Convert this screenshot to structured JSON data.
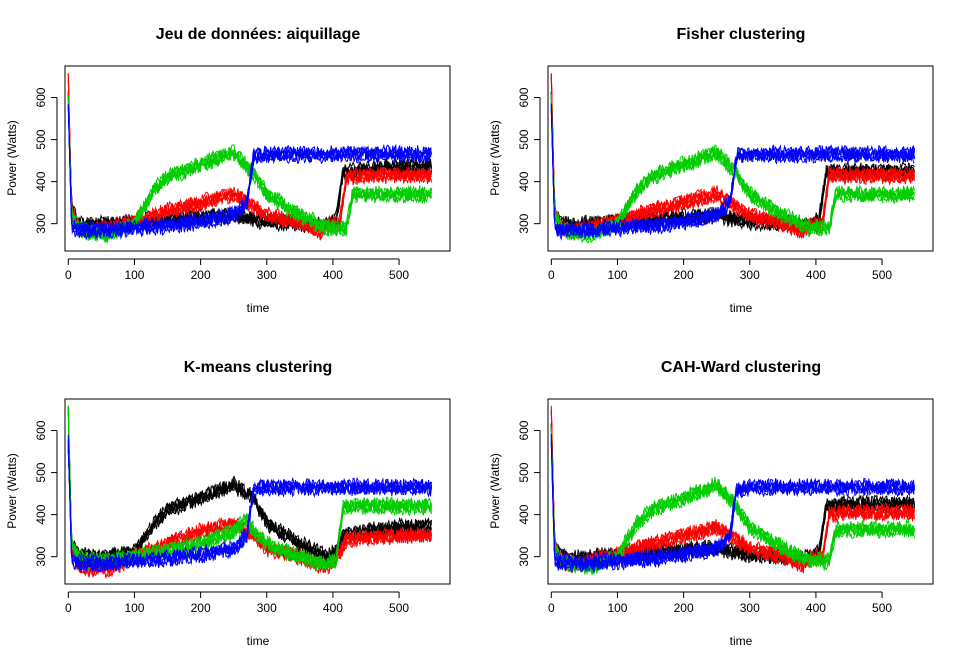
{
  "figure": {
    "colors": {
      "black": "#000000",
      "red": "#ff0000",
      "green": "#00cd00",
      "blue": "#0000ff"
    }
  },
  "chart_data": [
    {
      "type": "line",
      "title": "Jeu de données: aiquillage",
      "xlabel": "time",
      "ylabel": "Power (Watts)",
      "xlim": [
        0,
        550
      ],
      "ylim": [
        250,
        650
      ],
      "xticks": [
        0,
        100,
        200,
        300,
        400,
        500
      ],
      "yticks": [
        300,
        400,
        500,
        600
      ],
      "grid": false,
      "legend": "none",
      "series": [
        {
          "color": "#000000",
          "x": [
            0,
            5,
            15,
            30,
            60,
            100,
            150,
            200,
            250,
            280,
            300,
            350,
            390,
            405,
            415,
            450,
            500,
            550
          ],
          "y": [
            610,
            340,
            300,
            295,
            300,
            305,
            310,
            315,
            320,
            310,
            305,
            300,
            295,
            310,
            420,
            430,
            435,
            435
          ]
        },
        {
          "color": "#ff0000",
          "x": [
            0,
            5,
            15,
            30,
            60,
            100,
            150,
            200,
            250,
            280,
            300,
            350,
            380,
            395,
            410,
            420,
            450,
            500,
            550
          ],
          "y": [
            650,
            330,
            290,
            280,
            290,
            305,
            330,
            350,
            370,
            340,
            320,
            300,
            280,
            300,
            300,
            410,
            415,
            415,
            415
          ]
        },
        {
          "color": "#00cd00",
          "x": [
            0,
            5,
            15,
            30,
            60,
            100,
            130,
            150,
            200,
            250,
            280,
            300,
            350,
            390,
            420,
            430,
            450,
            500,
            550
          ],
          "y": [
            600,
            320,
            290,
            280,
            275,
            300,
            380,
            410,
            440,
            470,
            420,
            370,
            320,
            290,
            290,
            370,
            370,
            370,
            370
          ]
        },
        {
          "color": "#0000ff",
          "x": [
            0,
            5,
            15,
            30,
            60,
            100,
            150,
            200,
            250,
            270,
            280,
            300,
            350,
            400,
            450,
            500,
            550
          ],
          "y": [
            580,
            290,
            285,
            285,
            285,
            290,
            295,
            305,
            320,
            350,
            460,
            465,
            465,
            465,
            465,
            465,
            465
          ]
        }
      ]
    },
    {
      "type": "line",
      "title": "Fisher clustering",
      "xlabel": "time",
      "ylabel": "Power (Watts)",
      "xlim": [
        0,
        550
      ],
      "ylim": [
        250,
        650
      ],
      "xticks": [
        0,
        100,
        200,
        300,
        400,
        500
      ],
      "yticks": [
        300,
        400,
        500,
        600
      ],
      "grid": false,
      "legend": "none",
      "series": [
        {
          "color": "#000000",
          "x": [
            0,
            5,
            15,
            30,
            60,
            100,
            150,
            200,
            250,
            280,
            300,
            350,
            390,
            405,
            415,
            450,
            500,
            550
          ],
          "y": [
            610,
            330,
            300,
            295,
            300,
            305,
            310,
            315,
            320,
            310,
            305,
            300,
            295,
            310,
            420,
            425,
            425,
            425
          ]
        },
        {
          "color": "#ff0000",
          "x": [
            0,
            5,
            15,
            30,
            60,
            100,
            150,
            200,
            250,
            280,
            300,
            350,
            380,
            395,
            410,
            420,
            450,
            500,
            550
          ],
          "y": [
            650,
            330,
            290,
            280,
            290,
            305,
            330,
            350,
            370,
            340,
            320,
            300,
            280,
            300,
            300,
            415,
            415,
            415,
            415
          ]
        },
        {
          "color": "#00cd00",
          "x": [
            0,
            5,
            15,
            30,
            60,
            100,
            130,
            150,
            200,
            250,
            280,
            300,
            350,
            390,
            420,
            430,
            450,
            500,
            550
          ],
          "y": [
            600,
            320,
            290,
            280,
            275,
            300,
            380,
            410,
            440,
            470,
            420,
            370,
            320,
            290,
            290,
            370,
            370,
            370,
            370
          ]
        },
        {
          "color": "#0000ff",
          "x": [
            0,
            5,
            15,
            30,
            60,
            100,
            150,
            200,
            250,
            270,
            280,
            300,
            350,
            400,
            450,
            500,
            550
          ],
          "y": [
            580,
            290,
            285,
            285,
            285,
            290,
            295,
            305,
            320,
            350,
            460,
            465,
            465,
            465,
            465,
            465,
            465
          ]
        }
      ]
    },
    {
      "type": "line",
      "title": "K-means clustering",
      "xlabel": "time",
      "ylabel": "Power (Watts)",
      "xlim": [
        0,
        550
      ],
      "ylim": [
        250,
        650
      ],
      "xticks": [
        0,
        100,
        200,
        300,
        400,
        500
      ],
      "yticks": [
        300,
        400,
        500,
        600
      ],
      "grid": false,
      "legend": "none",
      "series": [
        {
          "color": "#000000",
          "x": [
            0,
            5,
            15,
            30,
            60,
            100,
            130,
            150,
            200,
            250,
            280,
            300,
            350,
            390,
            405,
            415,
            450,
            500,
            550
          ],
          "y": [
            560,
            330,
            305,
            300,
            300,
            310,
            380,
            410,
            440,
            470,
            440,
            380,
            330,
            300,
            310,
            350,
            360,
            370,
            370
          ]
        },
        {
          "color": "#ff0000",
          "x": [
            0,
            5,
            15,
            30,
            60,
            100,
            150,
            200,
            250,
            280,
            300,
            350,
            380,
            395,
            410,
            420,
            450,
            500,
            550
          ],
          "y": [
            650,
            320,
            280,
            270,
            270,
            300,
            330,
            360,
            380,
            350,
            320,
            300,
            280,
            280,
            310,
            340,
            345,
            350,
            350
          ]
        },
        {
          "color": "#00cd00",
          "x": [
            0,
            5,
            15,
            30,
            60,
            100,
            150,
            200,
            250,
            270,
            280,
            300,
            350,
            390,
            405,
            415,
            450,
            500,
            550
          ],
          "y": [
            650,
            330,
            300,
            290,
            290,
            300,
            315,
            330,
            360,
            390,
            360,
            330,
            300,
            280,
            290,
            420,
            420,
            420,
            420
          ]
        },
        {
          "color": "#0000ff",
          "x": [
            0,
            5,
            15,
            30,
            60,
            100,
            150,
            200,
            250,
            270,
            280,
            300,
            350,
            400,
            450,
            500,
            550
          ],
          "y": [
            580,
            290,
            285,
            285,
            285,
            290,
            295,
            305,
            320,
            350,
            460,
            465,
            465,
            465,
            465,
            465,
            465
          ]
        }
      ]
    },
    {
      "type": "line",
      "title": "CAH-Ward clustering",
      "xlabel": "time",
      "ylabel": "Power (Watts)",
      "xlim": [
        0,
        550
      ],
      "ylim": [
        250,
        650
      ],
      "xticks": [
        0,
        100,
        200,
        300,
        400,
        500
      ],
      "yticks": [
        300,
        400,
        500,
        600
      ],
      "grid": false,
      "legend": "none",
      "series": [
        {
          "color": "#000000",
          "x": [
            0,
            5,
            15,
            30,
            60,
            100,
            150,
            200,
            250,
            280,
            300,
            350,
            390,
            405,
            415,
            450,
            500,
            550
          ],
          "y": [
            610,
            330,
            300,
            295,
            300,
            305,
            310,
            315,
            320,
            310,
            305,
            300,
            295,
            310,
            420,
            425,
            425,
            425
          ]
        },
        {
          "color": "#ff0000",
          "x": [
            0,
            5,
            15,
            30,
            60,
            100,
            150,
            200,
            250,
            280,
            300,
            350,
            380,
            395,
            410,
            420,
            450,
            500,
            550
          ],
          "y": [
            650,
            330,
            290,
            280,
            290,
            305,
            330,
            350,
            370,
            340,
            320,
            300,
            280,
            300,
            300,
            400,
            405,
            405,
            405
          ]
        },
        {
          "color": "#00cd00",
          "x": [
            0,
            5,
            15,
            30,
            60,
            100,
            130,
            150,
            200,
            250,
            280,
            300,
            350,
            390,
            420,
            430,
            450,
            500,
            550
          ],
          "y": [
            600,
            320,
            290,
            280,
            275,
            300,
            380,
            410,
            440,
            470,
            420,
            370,
            320,
            290,
            290,
            365,
            365,
            365,
            365
          ]
        },
        {
          "color": "#0000ff",
          "x": [
            0,
            5,
            15,
            30,
            60,
            100,
            150,
            200,
            250,
            270,
            280,
            300,
            350,
            400,
            450,
            500,
            550
          ],
          "y": [
            580,
            290,
            285,
            285,
            285,
            290,
            295,
            305,
            320,
            350,
            460,
            465,
            465,
            465,
            465,
            465,
            465
          ]
        }
      ]
    }
  ]
}
